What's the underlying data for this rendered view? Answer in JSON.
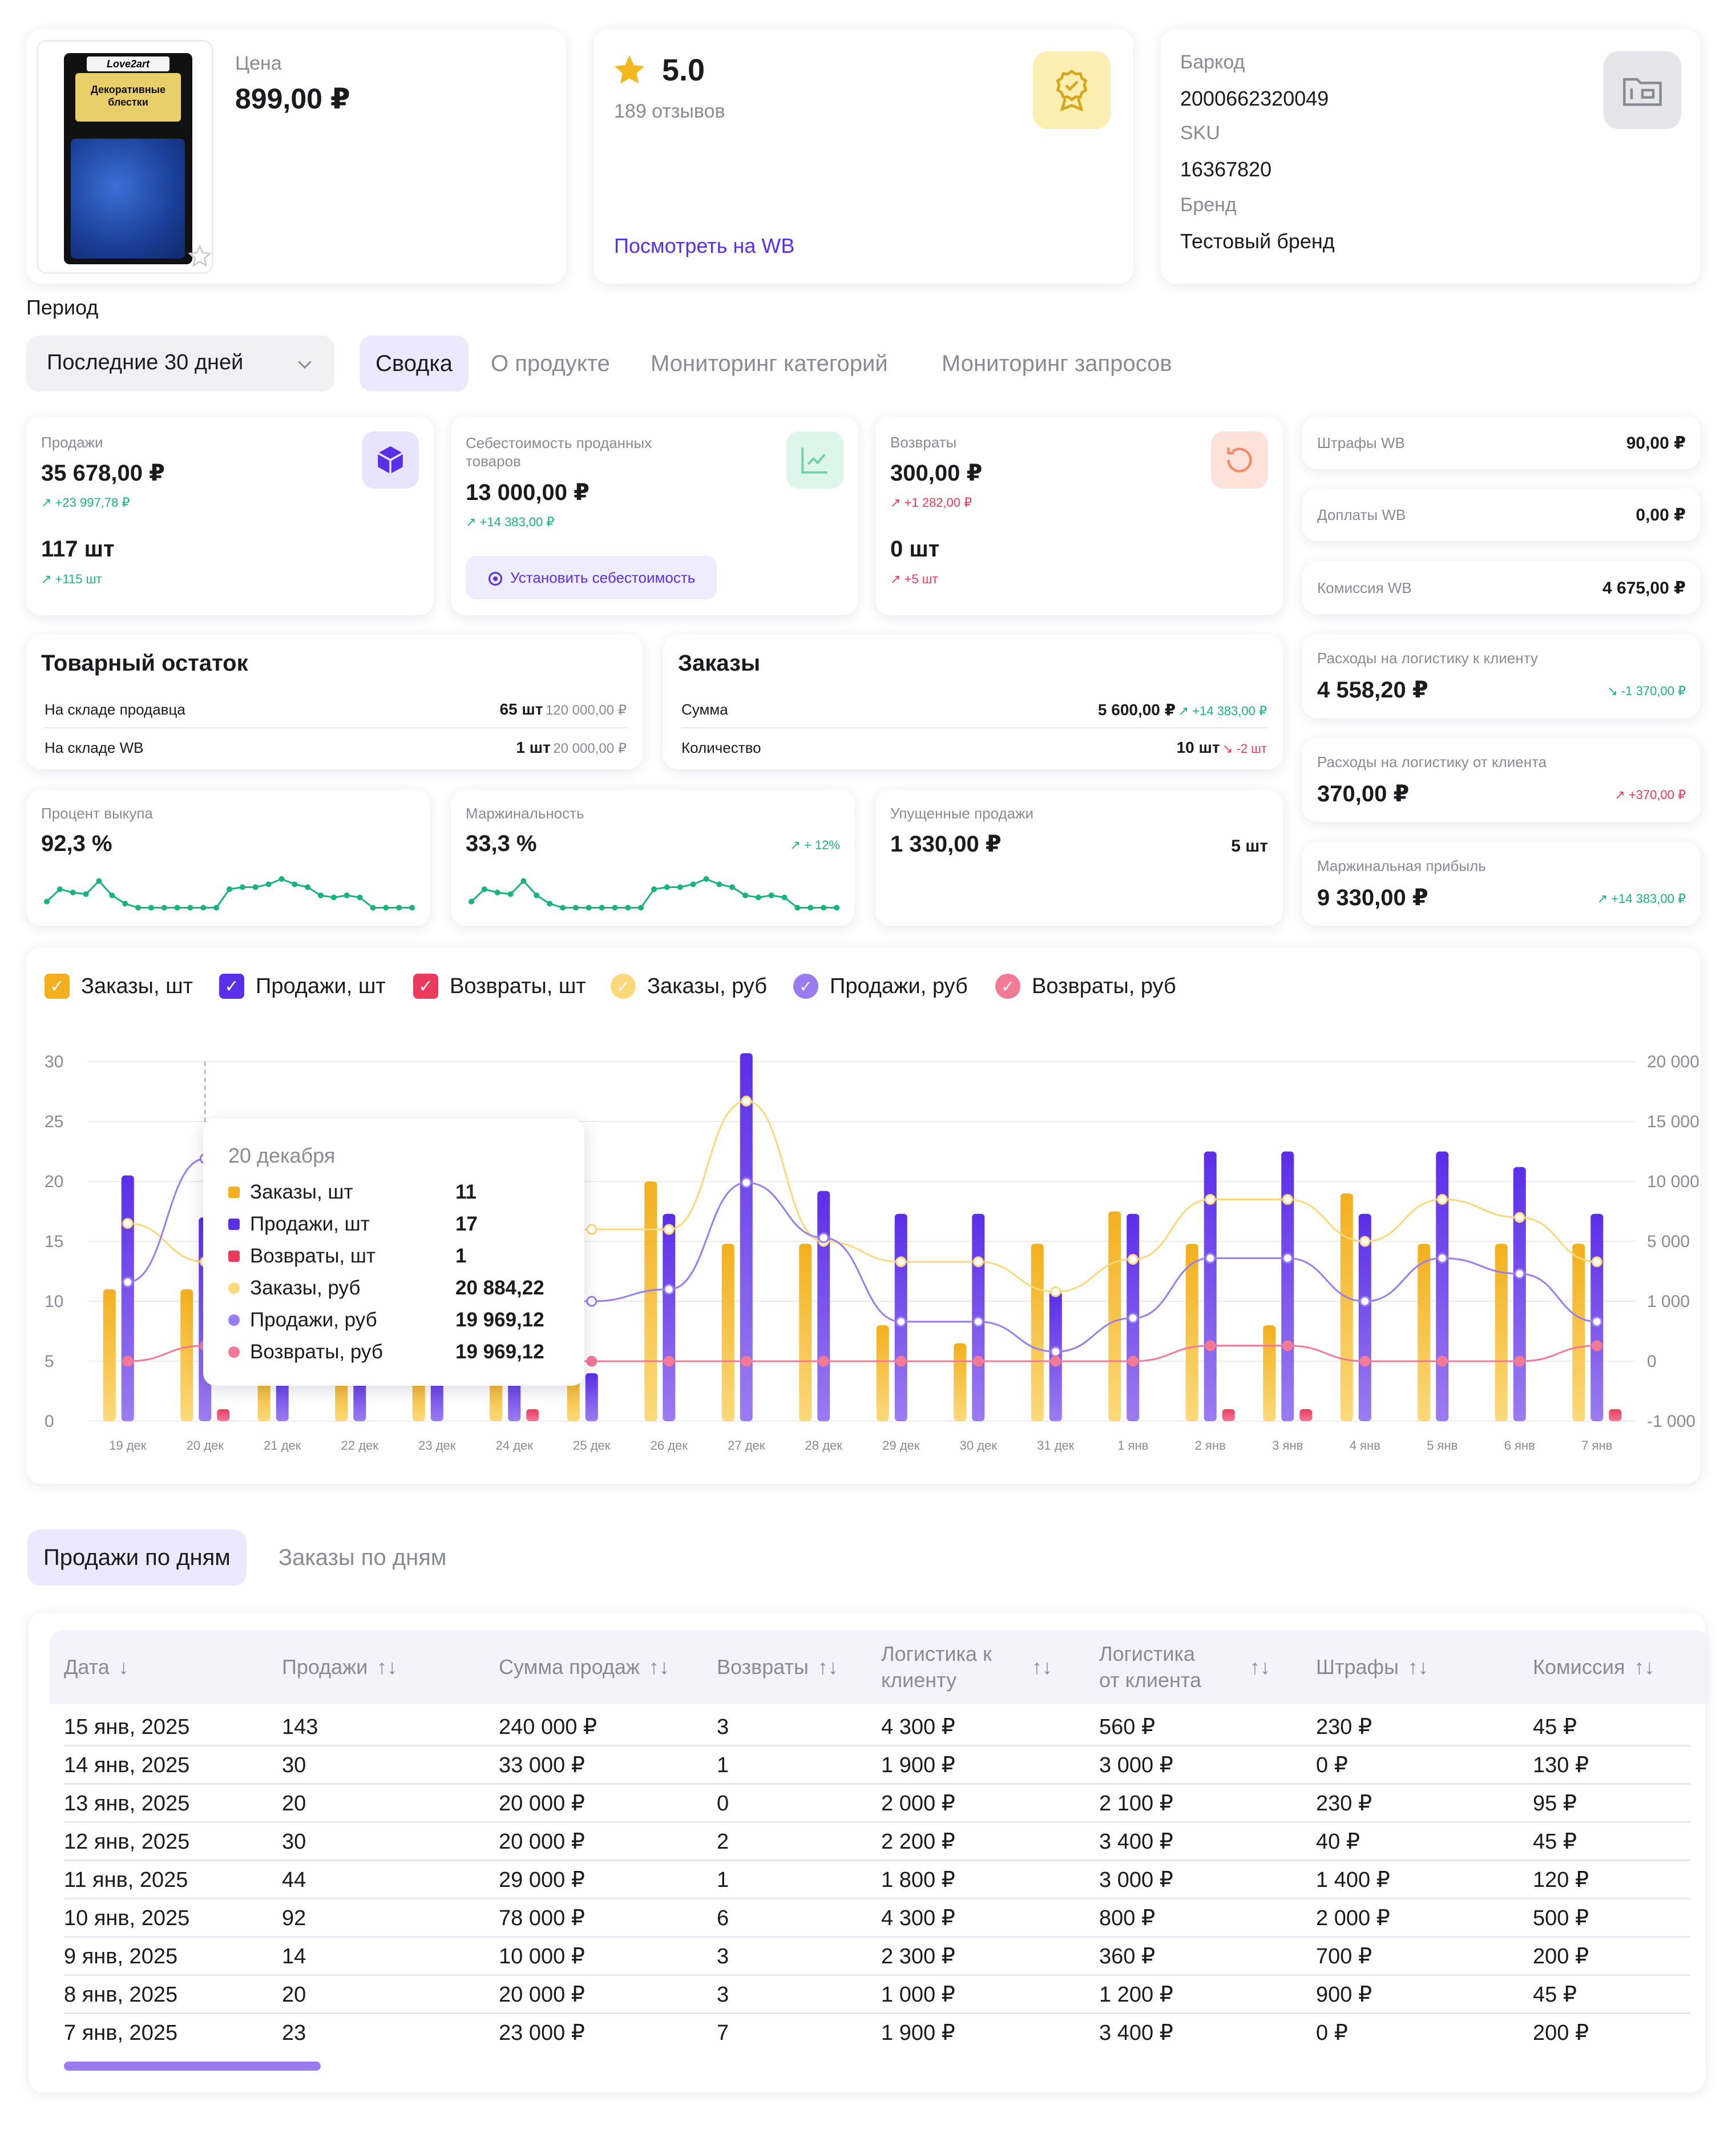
{
  "product": {
    "price_label": "Цена",
    "price": "899,00 ₽",
    "pack_logo": "Love2art",
    "pack_title": "Декоративные блестки",
    "rating": "5.0",
    "reviews": "189 отзывов",
    "wb_link": "Посмотреть на WB",
    "barcode_label": "Баркод",
    "barcode": "2000662320049",
    "sku_label": "SKU",
    "sku": "16367820",
    "brand_label": "Бренд",
    "brand": "Тестовый бренд"
  },
  "period": {
    "label": "Период",
    "value": "Последние 30 дней"
  },
  "tabs": [
    "Сводка",
    "О продукте",
    "Мониторинг категорий",
    "Мониторинг запросов"
  ],
  "kpis": {
    "sales": {
      "title": "Продажи",
      "amount": "35 678,00 ₽",
      "amount_delta": "+23 997,78 ₽",
      "qty": "117 шт",
      "qty_delta": "+115 шт"
    },
    "cost": {
      "title": "Себестоимость проданных товаров",
      "amount": "13 000,00 ₽",
      "amount_delta": "+14 383,00 ₽",
      "button": "Установить себестоимость"
    },
    "returns": {
      "title": "Возвраты",
      "amount": "300,00 ₽",
      "amount_delta": "+1 282,00 ₽",
      "qty": "0 шт",
      "qty_delta": "+5 шт"
    }
  },
  "side": {
    "fines": {
      "label": "Штрафы WB",
      "value": "90,00 ₽"
    },
    "surcharges": {
      "label": "Доплаты WB",
      "value": "0,00 ₽"
    },
    "commission": {
      "label": "Комиссия WB",
      "value": "4 675,00 ₽"
    },
    "log_to": {
      "label": "Расходы на логистику к клиенту",
      "value": "4 558,20 ₽",
      "delta": "-1 370,00 ₽"
    },
    "log_from": {
      "label": "Расходы на логистику от клиента",
      "value": "370,00 ₽",
      "delta": "+370,00 ₽"
    },
    "margin_profit": {
      "label": "Маржинальная прибыль",
      "value": "9 330,00 ₽",
      "delta": "+14 383,00 ₽"
    }
  },
  "stock": {
    "title": "Товарный остаток",
    "rows": [
      {
        "label": "На складе продавца",
        "qty": "65 шт",
        "sum": "120 000,00 ₽"
      },
      {
        "label": "На складе WB",
        "qty": "1 шт",
        "sum": "20 000,00 ₽"
      }
    ]
  },
  "orders": {
    "title": "Заказы",
    "sum_label": "Сумма",
    "sum": "5 600,00 ₽",
    "sum_delta": "+14 383,00 ₽",
    "qty_label": "Количество",
    "qty": "10 шт",
    "qty_delta": "-2 шт"
  },
  "buyout": {
    "title": "Процент выкупа",
    "value": "92,3 %"
  },
  "marginality": {
    "title": "Маржинальность",
    "value": "33,3 %",
    "delta": "+ 12%"
  },
  "lost": {
    "title": "Упущенные продажи",
    "value": "1 330,00 ₽",
    "qty": "5 шт"
  },
  "sparkline": [
    0.2,
    0.5,
    0.42,
    0.38,
    0.7,
    0.35,
    0.15,
    0.05,
    0.05,
    0.05,
    0.05,
    0.05,
    0.05,
    0.05,
    0.5,
    0.55,
    0.55,
    0.62,
    0.75,
    0.62,
    0.55,
    0.35,
    0.3,
    0.35,
    0.3,
    0.05,
    0.05,
    0.05,
    0.05
  ],
  "legend": [
    "Заказы, шт",
    "Продажи, шт",
    "Возвраты, шт",
    "Заказы, руб",
    "Продажи, руб",
    "Возвраты, руб"
  ],
  "colors": {
    "accent": "#5b2ee8",
    "orders": "#f2b01e",
    "sales": "#5b2ee8",
    "returns": "#ea3b5f",
    "orders_rub": "#fbd97a",
    "sales_rub": "#9b7cf0",
    "returns_rub": "#f27a96"
  },
  "chart_data": {
    "type": "bar",
    "categories": [
      "19 дек",
      "20 дек",
      "21 дек",
      "22 дек",
      "23 дек",
      "24 дек",
      "25 дек",
      "26 дек",
      "27 дек",
      "28 дек",
      "29 дек",
      "30 дек",
      "31 дек",
      "1 янв",
      "2 янв",
      "3 янв",
      "4 янв",
      "5 янв",
      "6 янв",
      "7 янв"
    ],
    "y_left": {
      "ylim": [
        0,
        30
      ],
      "ticks": [
        "0",
        "5",
        "10",
        "15",
        "20",
        "25",
        "30"
      ]
    },
    "y_right": {
      "ticks": [
        "-1 000",
        "0",
        "1 000",
        "5 000",
        "10 000",
        "15 000",
        "20 000"
      ]
    },
    "series": [
      {
        "name": "Заказы, шт",
        "axis": "left",
        "kind": "bar",
        "values": [
          11,
          11,
          4,
          4,
          4,
          4,
          4,
          20,
          14.8,
          14.8,
          8,
          6.5,
          14.8,
          17.5,
          14.8,
          8,
          19,
          14.8,
          14.8,
          14.8
        ]
      },
      {
        "name": "Продажи, шт",
        "axis": "left",
        "kind": "bar",
        "values": [
          20.5,
          17,
          4,
          4,
          4,
          4,
          4,
          17.3,
          30.7,
          19.2,
          17.3,
          17.3,
          10.8,
          17.3,
          22.5,
          22.5,
          17.3,
          22.5,
          21.2,
          17.3
        ]
      },
      {
        "name": "Возвраты, шт",
        "axis": "left",
        "kind": "bar",
        "values": [
          0,
          1,
          0,
          0,
          0,
          1,
          0,
          0,
          0,
          0,
          0,
          0,
          0,
          0,
          1,
          1,
          0,
          0,
          0,
          1
        ]
      },
      {
        "name": "Заказы, руб",
        "axis": "right",
        "kind": "line",
        "values": [
          16.5,
          13.3,
          15,
          15,
          15,
          15,
          16,
          16,
          26.7,
          15,
          13.3,
          13.3,
          10.8,
          13.5,
          18.5,
          18.5,
          15,
          18.5,
          17,
          13.3
        ]
      },
      {
        "name": "Продажи, руб",
        "axis": "right",
        "kind": "line",
        "values": [
          11.6,
          21.9,
          10,
          10,
          10,
          10,
          10,
          11,
          19.9,
          15.3,
          8.3,
          8.3,
          5.8,
          8.6,
          13.6,
          13.6,
          10,
          13.6,
          12.3,
          8.3
        ]
      },
      {
        "name": "Возвраты, руб",
        "axis": "right",
        "kind": "line",
        "values": [
          5,
          6.3,
          5,
          5,
          5,
          5,
          5,
          5,
          5,
          5,
          5,
          5,
          5,
          5,
          6.3,
          6.3,
          5,
          5,
          5,
          6.3
        ]
      }
    ],
    "grid": true,
    "legend": "top-left",
    "tooltip": {
      "date": "20 декабря",
      "rows": [
        {
          "label": "Заказы, шт",
          "value": "11"
        },
        {
          "label": "Продажи, шт",
          "value": "17"
        },
        {
          "label": "Возвраты, шт",
          "value": "1"
        },
        {
          "label": "Заказы, руб",
          "value": "20 884,22"
        },
        {
          "label": "Продажи, руб",
          "value": "19 969,12"
        },
        {
          "label": "Возвраты, руб",
          "value": "19 969,12"
        }
      ]
    }
  },
  "bottom_tabs": [
    "Продажи по дням",
    "Заказы по дням"
  ],
  "table": {
    "headers": [
      "Дата",
      "Продажи",
      "Сумма продаж",
      "Возвраты",
      "Логистика к клиенту",
      "Логистика от клиента",
      "Штрафы",
      "Комиссия"
    ],
    "rows": [
      [
        "15 янв, 2025",
        "143",
        "240 000 ₽",
        "3",
        "4 300 ₽",
        "560 ₽",
        "230 ₽",
        "45 ₽"
      ],
      [
        "14 янв, 2025",
        "30",
        "33 000 ₽",
        "1",
        "1 900 ₽",
        "3 000 ₽",
        "0 ₽",
        "130 ₽"
      ],
      [
        "13 янв, 2025",
        "20",
        "20 000 ₽",
        "0",
        "2 000 ₽",
        "2 100 ₽",
        "230 ₽",
        "95 ₽"
      ],
      [
        "12 янв, 2025",
        "30",
        "20 000 ₽",
        "2",
        "2 200 ₽",
        "3 400 ₽",
        "40 ₽",
        "45 ₽"
      ],
      [
        "11 янв, 2025",
        "44",
        "29 000 ₽",
        "1",
        "1 800 ₽",
        "3 000 ₽",
        "1 400 ₽",
        "120 ₽"
      ],
      [
        "10 янв, 2025",
        "92",
        "78 000 ₽",
        "6",
        "4 300 ₽",
        "800 ₽",
        "2 000 ₽",
        "500 ₽"
      ],
      [
        "9 янв, 2025",
        "14",
        "10 000 ₽",
        "3",
        "2 300 ₽",
        "360 ₽",
        "700 ₽",
        "200 ₽"
      ],
      [
        "8 янв, 2025",
        "20",
        "20 000 ₽",
        "3",
        "1 000 ₽",
        "1 200 ₽",
        "900 ₽",
        "45 ₽"
      ],
      [
        "7 янв, 2025",
        "23",
        "23 000 ₽",
        "7",
        "1 900 ₽",
        "3 400 ₽",
        "0 ₽",
        "200 ₽"
      ]
    ]
  }
}
